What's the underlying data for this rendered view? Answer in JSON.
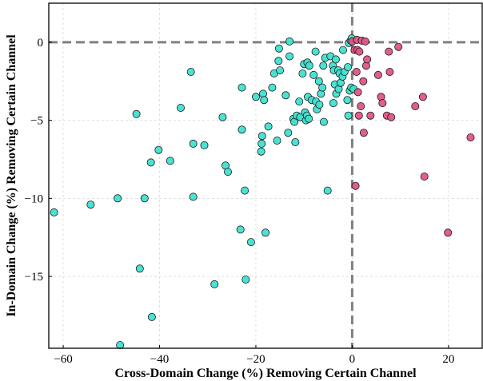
{
  "chart_data": {
    "type": "scatter",
    "xlabel": "Cross-Domain Change (%) Removing Certain Channel",
    "ylabel": "In-Domain Change (%) Removing Certain Channel",
    "xlim": [
      -63,
      27
    ],
    "ylim": [
      -19.6,
      2.5
    ],
    "x_ticks": [
      -60,
      -40,
      -20,
      0,
      20
    ],
    "x_tick_labels": [
      "−60",
      "−40",
      "−20",
      "0",
      "20"
    ],
    "y_ticks": [
      0,
      -5,
      -10,
      -15
    ],
    "y_tick_labels": [
      "0",
      "−5",
      "−10",
      "−15"
    ],
    "grid": true,
    "reference_lines": {
      "x": 0,
      "y": 0,
      "style": "dashed",
      "color": "#808080"
    },
    "colors": {
      "teal": "#40E0D0",
      "pink": "#E05585",
      "edge": "#1a1a1a"
    },
    "series": [
      {
        "color": "teal",
        "points": [
          [
            -61.9,
            -10.9
          ],
          [
            -54.3,
            -10.4
          ],
          [
            -48.7,
            -10.0
          ],
          [
            -48.2,
            -19.4
          ],
          [
            -44.8,
            -4.6
          ],
          [
            -44.1,
            -14.5
          ],
          [
            -43.1,
            -10.0
          ],
          [
            -41.8,
            -7.7
          ],
          [
            -41.6,
            -17.6
          ],
          [
            -40.2,
            -6.9
          ],
          [
            -37.8,
            -7.6
          ],
          [
            -35.6,
            -4.2
          ],
          [
            -33.5,
            -1.9
          ],
          [
            -33.0,
            -6.5
          ],
          [
            -33.0,
            -9.9
          ],
          [
            -30.7,
            -6.6
          ],
          [
            -28.6,
            -15.5
          ],
          [
            -26.9,
            -4.8
          ],
          [
            -26.3,
            -7.9
          ],
          [
            -25.8,
            -8.3
          ],
          [
            -23.2,
            -12.0
          ],
          [
            -22.9,
            -2.9
          ],
          [
            -22.9,
            -5.6
          ],
          [
            -22.3,
            -9.5
          ],
          [
            -22.1,
            -15.2
          ],
          [
            -21.0,
            -12.8
          ],
          [
            -20.0,
            -3.5
          ],
          [
            -18.9,
            -7.0
          ],
          [
            -18.8,
            -6.5
          ],
          [
            -18.7,
            -6.0
          ],
          [
            -18.5,
            -3.3
          ],
          [
            -18.3,
            -3.7
          ],
          [
            -18.0,
            -12.2
          ],
          [
            -17.4,
            -5.4
          ],
          [
            -16.6,
            -2.9
          ],
          [
            -16.2,
            -2.0
          ],
          [
            -15.6,
            -6.3
          ],
          [
            -15.3,
            -1.2
          ],
          [
            -15.2,
            -0.4
          ],
          [
            -15.0,
            -1.8
          ],
          [
            -13.8,
            -3.4
          ],
          [
            -13.3,
            -5.8
          ],
          [
            -13.0,
            0.05
          ],
          [
            -13.0,
            -0.9
          ],
          [
            -12.2,
            -4.9
          ],
          [
            -12.0,
            -5.1
          ],
          [
            -11.8,
            -6.4
          ],
          [
            -11.5,
            -4.7
          ],
          [
            -11.0,
            -3.8
          ],
          [
            -10.8,
            -4.8
          ],
          [
            -10.3,
            -2.0
          ],
          [
            -10.0,
            -1.4
          ],
          [
            -9.8,
            -4.5
          ],
          [
            -9.6,
            -5.0
          ],
          [
            -9.4,
            -4.7
          ],
          [
            -9.3,
            -1.3
          ],
          [
            -9.2,
            -3.5
          ],
          [
            -9.0,
            -4.9
          ],
          [
            -8.9,
            -1.5
          ],
          [
            -8.4,
            -3.7
          ],
          [
            -8.0,
            -2.1
          ],
          [
            -7.6,
            -0.6
          ],
          [
            -7.5,
            -3.8
          ],
          [
            -7.3,
            -4.3
          ],
          [
            -6.9,
            -2.5
          ],
          [
            -6.8,
            -4.0
          ],
          [
            -6.5,
            -3.3
          ],
          [
            -6.2,
            -2.9
          ],
          [
            -6.0,
            -1.5
          ],
          [
            -5.9,
            -5.1
          ],
          [
            -5.6,
            -1.0
          ],
          [
            -5.1,
            -9.5
          ],
          [
            -4.5,
            -0.9
          ],
          [
            -4.0,
            -1.5
          ],
          [
            -3.9,
            -3.9
          ],
          [
            -3.8,
            -1.8
          ],
          [
            -3.6,
            -2.7
          ],
          [
            -3.4,
            -1.1
          ],
          [
            -3.3,
            -3.3
          ],
          [
            -2.9,
            -1.8
          ],
          [
            -2.8,
            -3.0
          ],
          [
            -2.6,
            -2.0
          ],
          [
            -2.4,
            -2.6
          ],
          [
            -2.0,
            -2.2
          ],
          [
            -1.9,
            -0.5
          ],
          [
            -1.6,
            -1.9
          ],
          [
            -1.0,
            -3.7
          ],
          [
            -0.9,
            -1.6
          ],
          [
            -0.8,
            -4.7
          ],
          [
            -0.7,
            -0.05
          ],
          [
            -0.5,
            -3.1
          ],
          [
            -0.3,
            0.1
          ],
          [
            -0.2,
            -2.9
          ],
          [
            -0.1,
            0.25
          ],
          [
            0.3,
            -3.0
          ]
        ]
      },
      {
        "color": "pink",
        "points": [
          [
            0.0,
            0.05
          ],
          [
            0.5,
            -0.5
          ],
          [
            0.7,
            -9.2
          ],
          [
            0.9,
            -1.9
          ],
          [
            1.0,
            0.15
          ],
          [
            1.1,
            -0.5
          ],
          [
            1.2,
            -3.2
          ],
          [
            1.4,
            -4.7
          ],
          [
            1.5,
            -0.6
          ],
          [
            1.8,
            -4.1
          ],
          [
            2.0,
            0.1
          ],
          [
            2.3,
            -2.5
          ],
          [
            2.4,
            -5.8
          ],
          [
            2.7,
            0.05
          ],
          [
            2.9,
            -1.5
          ],
          [
            3.1,
            -1.1
          ],
          [
            3.8,
            -4.7
          ],
          [
            5.4,
            -2.1
          ],
          [
            6.0,
            -3.5
          ],
          [
            6.3,
            -3.9
          ],
          [
            7.2,
            -4.7
          ],
          [
            7.6,
            -0.6
          ],
          [
            7.8,
            -1.9
          ],
          [
            8.1,
            -4.8
          ],
          [
            9.6,
            -0.3
          ],
          [
            13.1,
            -4.1
          ],
          [
            14.7,
            -3.5
          ],
          [
            15.0,
            -8.6
          ],
          [
            19.9,
            -12.2
          ],
          [
            24.6,
            -6.1
          ]
        ]
      }
    ]
  }
}
